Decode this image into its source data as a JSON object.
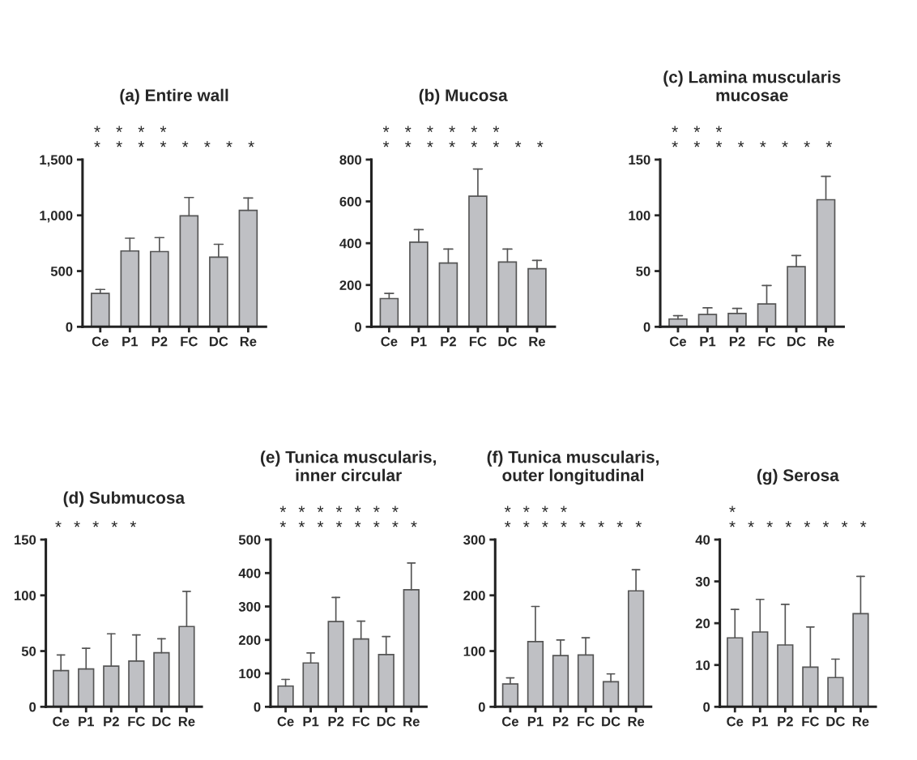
{
  "chart_data": [
    {
      "type": "bar",
      "title": "(a) Entire wall",
      "categories": [
        "Ce",
        "P1",
        "P2",
        "FC",
        "DC",
        "Re"
      ],
      "values": [
        300,
        680,
        675,
        995,
        625,
        1045
      ],
      "errors": [
        [
          300,
          335
        ],
        [
          680,
          795
        ],
        [
          675,
          800
        ],
        [
          995,
          1160
        ],
        [
          625,
          740
        ],
        [
          1045,
          1155
        ]
      ],
      "color": "#bfc0c4",
      "ylim": [
        0,
        1500
      ],
      "yticks": [
        0,
        500,
        {
          "value": 1000,
          "label": "1,000"
        },
        {
          "value": 1500,
          "label": "1,500"
        }
      ],
      "annotations": [
        "*",
        "*",
        "*",
        "*",
        "*",
        "*",
        "*",
        "*",
        "*",
        "*",
        "*",
        "*"
      ]
    },
    {
      "type": "bar",
      "title": "(b) Mucosa",
      "categories": [
        "Ce",
        "P1",
        "P2",
        "FC",
        "DC",
        "Re"
      ],
      "values": [
        135,
        405,
        305,
        625,
        310,
        278
      ],
      "errors": [
        [
          135,
          160
        ],
        [
          405,
          465
        ],
        [
          305,
          372
        ],
        [
          625,
          755
        ],
        [
          310,
          372
        ],
        [
          278,
          318
        ]
      ],
      "color": "#bfc0c4",
      "ylim": [
        0,
        800
      ],
      "yticks": [
        0,
        200,
        400,
        600,
        800
      ],
      "annotations": [
        "*",
        "*",
        "*",
        "*",
        "*",
        "*",
        "*",
        "*",
        "*",
        "*",
        "*",
        "*",
        "*",
        "*"
      ]
    },
    {
      "type": "bar",
      "title": "(c) Lamina muscularis\nmucosae",
      "categories": [
        "Ce",
        "P1",
        "P2",
        "FC",
        "DC",
        "Re"
      ],
      "values": [
        7,
        11,
        12,
        20.5,
        54,
        114
      ],
      "errors": [
        [
          7,
          10
        ],
        [
          11,
          17
        ],
        [
          12,
          16.5
        ],
        [
          20.5,
          37
        ],
        [
          54,
          64
        ],
        [
          114,
          135
        ]
      ],
      "color": "#bfc0c4",
      "ylim": [
        0,
        150
      ],
      "yticks": [
        0,
        50,
        100,
        150
      ],
      "annotations": [
        "*",
        "*",
        "*",
        "*",
        "*",
        "*",
        "*",
        "*",
        "*",
        "*",
        "*"
      ]
    },
    {
      "type": "bar",
      "title": "(d) Submucosa",
      "categories": [
        "Ce",
        "P1",
        "P2",
        "FC",
        "DC",
        "Re"
      ],
      "values": [
        32.5,
        34,
        36.5,
        41,
        48.5,
        72
      ],
      "errors": [
        [
          32.5,
          46.5
        ],
        [
          34,
          52.5
        ],
        [
          36.5,
          65.5
        ],
        [
          41,
          64.5
        ],
        [
          48.5,
          61
        ],
        [
          72,
          103.5
        ]
      ],
      "color": "#bfc0c4",
      "ylim": [
        0,
        150
      ],
      "yticks": [
        0,
        50,
        100,
        150
      ],
      "annotations": [
        "*",
        "*",
        "*",
        "*",
        "*"
      ]
    },
    {
      "type": "bar",
      "title": "(e) Tunica muscularis,\ninner circular",
      "categories": [
        "Ce",
        "P1",
        "P2",
        "FC",
        "DC",
        "Re"
      ],
      "values": [
        62,
        131,
        255,
        203,
        156,
        350
      ],
      "errors": [
        [
          62,
          82
        ],
        [
          131,
          161
        ],
        [
          255,
          327
        ],
        [
          203,
          256
        ],
        [
          156,
          210
        ],
        [
          350,
          430
        ]
      ],
      "color": "#bfc0c4",
      "ylim": [
        0,
        500
      ],
      "yticks": [
        0,
        100,
        200,
        300,
        400,
        500
      ],
      "annotations": [
        "*",
        "*",
        "*",
        "*",
        "*",
        "*",
        "*",
        "*",
        "*",
        "*",
        "*",
        "*",
        "*",
        "*",
        "*"
      ]
    },
    {
      "type": "bar",
      "title": "(f) Tunica muscularis,\nouter longitudinal",
      "categories": [
        "Ce",
        "P1",
        "P2",
        "FC",
        "DC",
        "Re"
      ],
      "values": [
        41,
        117,
        92,
        93,
        45,
        208
      ],
      "errors": [
        [
          41,
          52
        ],
        [
          117,
          180
        ],
        [
          92,
          120
        ],
        [
          93,
          124
        ],
        [
          45,
          59
        ],
        [
          208,
          246
        ]
      ],
      "color": "#bfc0c4",
      "ylim": [
        0,
        300
      ],
      "yticks": [
        0,
        100,
        200,
        300
      ],
      "annotations": [
        "*",
        "*",
        "*",
        "*",
        "*",
        "*",
        "*",
        "*",
        "*",
        "*",
        "*",
        "*"
      ]
    },
    {
      "type": "bar",
      "title": "(g) Serosa",
      "categories": [
        "Ce",
        "P1",
        "P2",
        "FC",
        "DC",
        "Re"
      ],
      "values": [
        16.5,
        17.9,
        14.8,
        9.5,
        7,
        22.3
      ],
      "errors": [
        [
          16.5,
          23.3
        ],
        [
          17.9,
          25.7
        ],
        [
          14.8,
          24.5
        ],
        [
          9.5,
          19.1
        ],
        [
          7,
          11.4
        ],
        [
          22.3,
          31.2
        ]
      ],
      "color": "#bfc0c4",
      "ylim": [
        0,
        40
      ],
      "yticks": [
        0,
        10,
        20,
        30,
        40
      ],
      "annotations": [
        "*",
        "*",
        "*",
        "*",
        "*",
        "*",
        "*",
        "*",
        "*"
      ]
    }
  ]
}
